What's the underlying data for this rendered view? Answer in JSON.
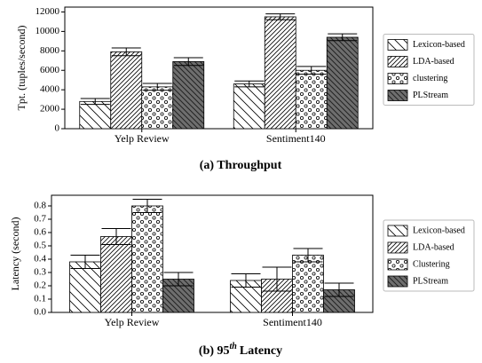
{
  "chart_data": [
    {
      "type": "bar",
      "caption": "(a) Throughput",
      "ylabel": "Tpt. (tuples/second)",
      "categories": [
        "Yelp Review",
        "Sentiment140"
      ],
      "series": [
        {
          "name": "Lexicon-based",
          "color": "#ffffff",
          "values": [
            2800,
            4600
          ],
          "errors": [
            300,
            300
          ]
        },
        {
          "name": "LDA-based",
          "color": "#ffffff",
          "values": [
            7900,
            11500
          ],
          "errors": [
            400,
            300
          ]
        },
        {
          "name": "clustering",
          "color": "#ffffff",
          "values": [
            4300,
            6000
          ],
          "errors": [
            350,
            400
          ]
        },
        {
          "name": "PLStream",
          "color": "#6e6e6e",
          "values": [
            6900,
            9400
          ],
          "errors": [
            400,
            350
          ]
        }
      ],
      "ylim": [
        0,
        12500
      ],
      "yticks": [
        0,
        2000,
        4000,
        6000,
        8000,
        10000,
        12000
      ],
      "legend": "right"
    },
    {
      "type": "bar",
      "caption": [
        "(b) 95",
        "th",
        "Latency"
      ],
      "ylabel": "Latency (second)",
      "categories": [
        "Yelp Review",
        "Sentiment140"
      ],
      "series": [
        {
          "name": "Lexicon-based",
          "color": "#ffffff",
          "values": [
            0.38,
            0.24
          ],
          "errors": [
            0.05,
            0.05
          ]
        },
        {
          "name": "LDA-based",
          "color": "#ffffff",
          "values": [
            0.57,
            0.25
          ],
          "errors": [
            0.06,
            0.09
          ]
        },
        {
          "name": "Clustering",
          "color": "#ffffff",
          "values": [
            0.8,
            0.43
          ],
          "errors": [
            0.05,
            0.05
          ]
        },
        {
          "name": "PLStream",
          "color": "#6e6e6e",
          "values": [
            0.25,
            0.17
          ],
          "errors": [
            0.05,
            0.05
          ]
        }
      ],
      "ylim": [
        0,
        0.88
      ],
      "yticks": [
        {
          "value": 0,
          "label": "0.0"
        },
        0.1,
        0.2,
        0.3,
        0.4,
        0.5,
        0.6,
        0.7,
        0.8
      ],
      "legend": "right"
    }
  ]
}
